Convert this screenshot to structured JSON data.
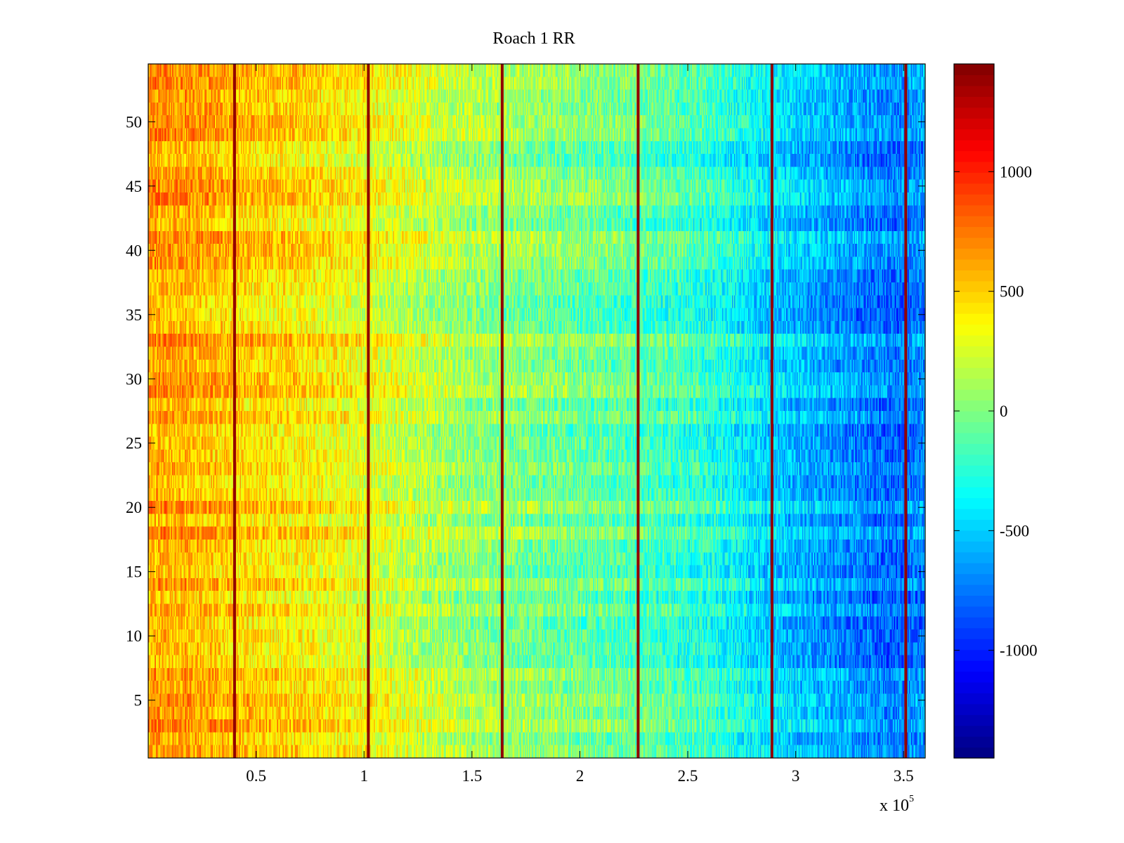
{
  "chart_data": {
    "type": "heatmap",
    "title": "Roach 1 RR",
    "xlabel": "",
    "ylabel": "",
    "x_multiplier": {
      "base": "x 10",
      "exponent": "5"
    },
    "xlim": [
      0,
      360000
    ],
    "ylim": [
      0.5,
      54.5
    ],
    "rows": 54,
    "columns": 720,
    "x_ticks": [
      {
        "value": 0.5,
        "label": "0.5"
      },
      {
        "value": 1,
        "label": "1"
      },
      {
        "value": 1.5,
        "label": "1.5"
      },
      {
        "value": 2,
        "label": "2"
      },
      {
        "value": 2.5,
        "label": "2.5"
      },
      {
        "value": 3,
        "label": "3"
      },
      {
        "value": 3.5,
        "label": "3.5"
      }
    ],
    "y_ticks": [
      {
        "value": 5,
        "label": "5"
      },
      {
        "value": 10,
        "label": "10"
      },
      {
        "value": 15,
        "label": "15"
      },
      {
        "value": 20,
        "label": "20"
      },
      {
        "value": 25,
        "label": "25"
      },
      {
        "value": 30,
        "label": "30"
      },
      {
        "value": 35,
        "label": "35"
      },
      {
        "value": 40,
        "label": "40"
      },
      {
        "value": 45,
        "label": "45"
      },
      {
        "value": 50,
        "label": "50"
      }
    ],
    "colorbar": {
      "colormap": "jet",
      "clim": [
        -1450,
        1450
      ],
      "ticks": [
        {
          "value": 1000,
          "label": "1000"
        },
        {
          "value": 500,
          "label": "500"
        },
        {
          "value": 0,
          "label": "0"
        },
        {
          "value": -500,
          "label": "-500"
        },
        {
          "value": -1000,
          "label": "-1000"
        }
      ]
    },
    "column_trend": [
      {
        "x": 0,
        "value": 640
      },
      {
        "x": 20000,
        "value": 600
      },
      {
        "x": 40000,
        "value": 520
      },
      {
        "x": 70000,
        "value": 430
      },
      {
        "x": 100000,
        "value": 330
      },
      {
        "x": 130000,
        "value": 170
      },
      {
        "x": 160000,
        "value": 60
      },
      {
        "x": 200000,
        "value": -40
      },
      {
        "x": 230000,
        "value": -110
      },
      {
        "x": 260000,
        "value": -230
      },
      {
        "x": 290000,
        "value": -470
      },
      {
        "x": 320000,
        "value": -630
      },
      {
        "x": 345000,
        "value": -760
      },
      {
        "x": 360000,
        "value": -680
      }
    ],
    "row_pattern_amplitude": 120,
    "cell_noise_amplitude": 230,
    "vertical_lines": [
      {
        "x": 40000,
        "value": 1400
      },
      {
        "x": 102000,
        "value": 1400
      },
      {
        "x": 164000,
        "value": 1400
      },
      {
        "x": 227000,
        "value": 1400
      },
      {
        "x": 289000,
        "value": 1400
      },
      {
        "x": 351000,
        "value": 1400
      }
    ]
  }
}
